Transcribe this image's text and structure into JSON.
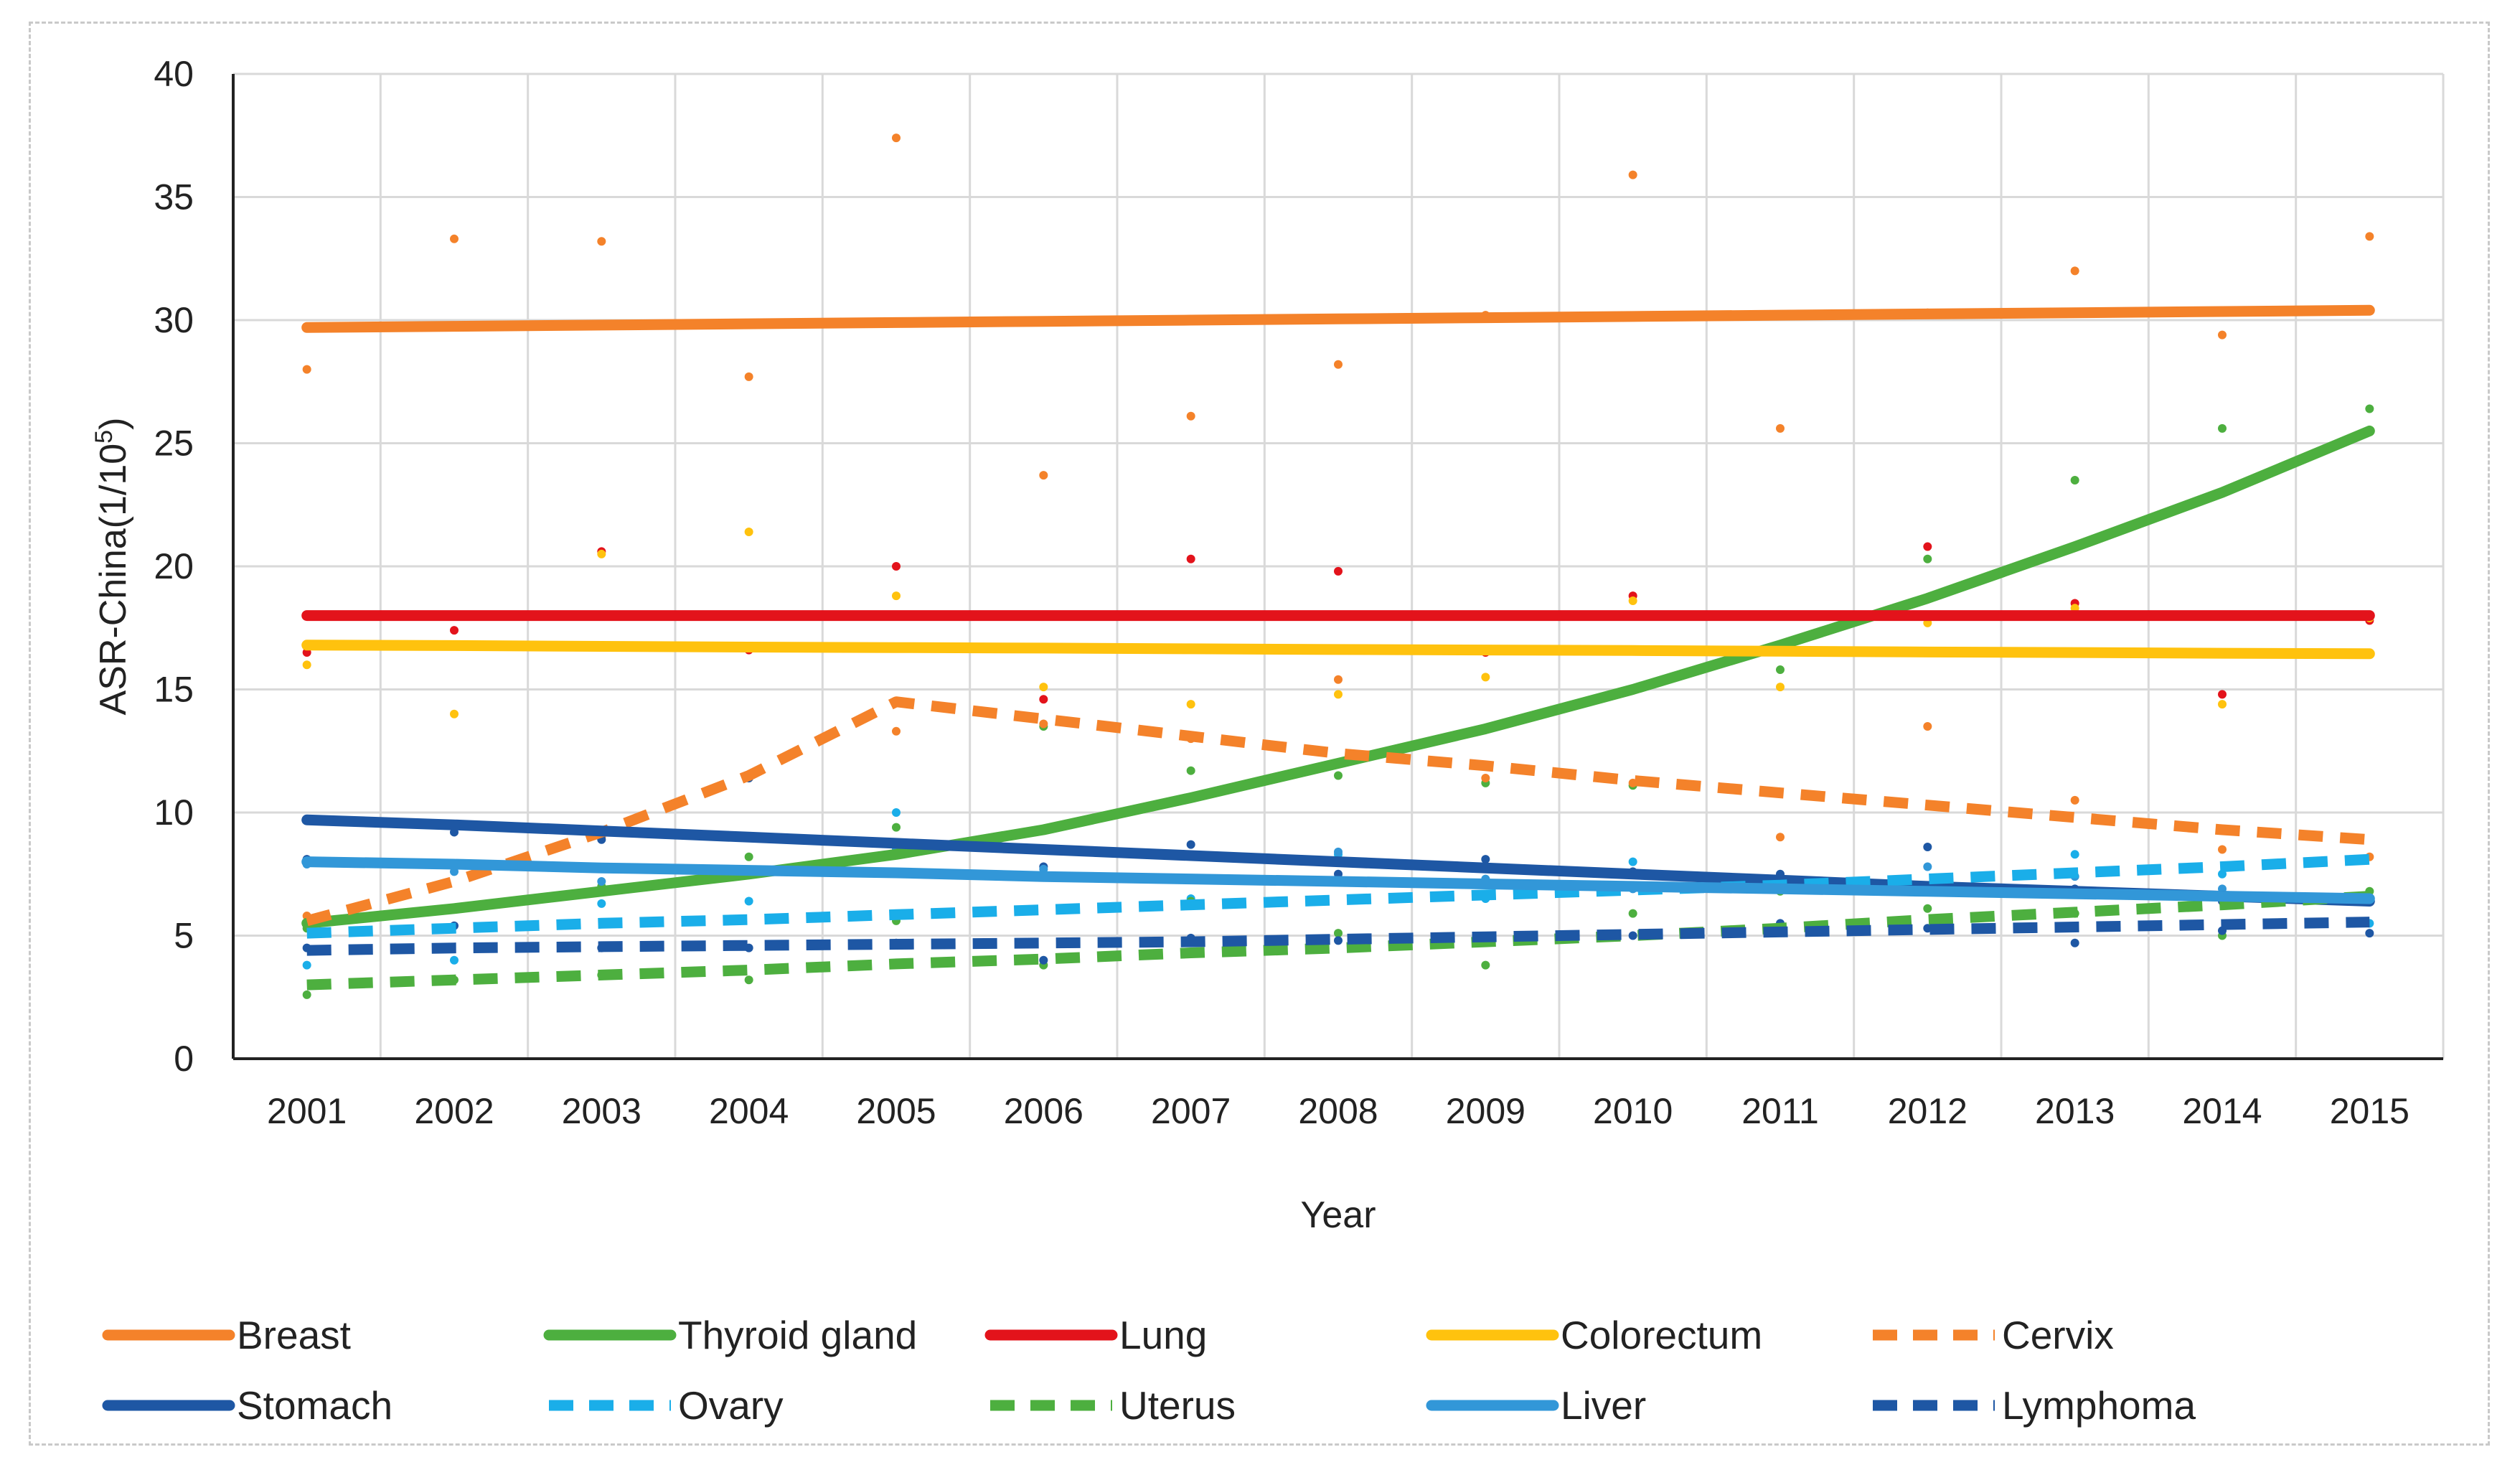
{
  "chart_data": {
    "type": "line",
    "xlabel": "Year",
    "ylabel": "ASR-China(1/10",
    "ylabel_sup": "5",
    "ylabel_close": ")",
    "ylim": [
      0,
      40
    ],
    "yticks": [
      0,
      5,
      10,
      15,
      20,
      25,
      30,
      35,
      40
    ],
    "categories": [
      "2001",
      "2002",
      "2003",
      "2004",
      "2005",
      "2006",
      "2007",
      "2008",
      "2009",
      "2010",
      "2011",
      "2012",
      "2013",
      "2014",
      "2015"
    ],
    "grid": true,
    "legend_position": "bottom",
    "series": [
      {
        "name": "Breast",
        "color": "#F4822A",
        "dash": false,
        "trend": [
          29.7,
          29.75,
          29.8,
          29.85,
          29.9,
          29.95,
          30.0,
          30.05,
          30.1,
          30.15,
          30.2,
          30.25,
          30.3,
          30.35,
          30.4
        ],
        "points": [
          28.0,
          33.3,
          33.2,
          27.7,
          37.4,
          23.7,
          26.1,
          28.2,
          30.2,
          35.9,
          25.6,
          30.3,
          32.0,
          29.4,
          33.4
        ]
      },
      {
        "name": "Thyroid gland",
        "color": "#4DAF3F",
        "dash": false,
        "trend": [
          5.5,
          6.1,
          6.8,
          7.5,
          8.3,
          9.3,
          10.6,
          12.0,
          13.4,
          15.0,
          16.8,
          18.7,
          20.8,
          23.0,
          25.5
        ],
        "points": [
          5.3,
          7.9,
          7.0,
          8.2,
          9.4,
          13.5,
          11.7,
          11.5,
          11.2,
          11.1,
          15.8,
          20.3,
          23.5,
          25.6,
          26.4
        ]
      },
      {
        "name": "Lung",
        "color": "#E3131B",
        "dash": false,
        "trend": [
          18.0,
          18.0,
          18.0,
          18.0,
          18.0,
          18.0,
          18.0,
          18.0,
          18.0,
          18.0,
          18.0,
          18.0,
          18.0,
          18.0,
          18.0
        ],
        "points": [
          16.5,
          17.4,
          20.6,
          16.6,
          20.0,
          14.6,
          20.3,
          19.8,
          16.5,
          18.8,
          18.0,
          20.8,
          18.5,
          14.8,
          17.8
        ]
      },
      {
        "name": "Colorectum",
        "color": "#FFC20E",
        "dash": false,
        "trend": [
          16.8,
          16.78,
          16.75,
          16.72,
          16.7,
          16.68,
          16.65,
          16.62,
          16.6,
          16.58,
          16.55,
          16.52,
          16.5,
          16.47,
          16.45
        ],
        "points": [
          16.0,
          14.0,
          20.5,
          21.4,
          18.8,
          15.1,
          14.4,
          14.8,
          15.5,
          18.6,
          15.1,
          17.7,
          18.3,
          14.4,
          17.9
        ]
      },
      {
        "name": "Cervix",
        "color": "#F4822A",
        "dash": true,
        "trend": [
          5.6,
          7.2,
          9.2,
          11.5,
          14.5,
          13.8,
          13.1,
          12.4,
          11.9,
          11.3,
          10.8,
          10.3,
          9.8,
          9.3,
          8.9
        ],
        "points": [
          5.8,
          7.8,
          9.0,
          11.4,
          13.3,
          13.6,
          13.0,
          15.4,
          11.4,
          11.2,
          9.0,
          13.5,
          10.5,
          8.5,
          8.2
        ]
      },
      {
        "name": "Stomach",
        "color": "#1E57A4",
        "dash": false,
        "trend": [
          9.7,
          9.5,
          9.25,
          9.0,
          8.75,
          8.5,
          8.25,
          8.0,
          7.75,
          7.5,
          7.25,
          7.0,
          6.8,
          6.6,
          6.4
        ],
        "points": [
          8.1,
          9.2,
          8.9,
          11.4,
          8.7,
          7.8,
          8.7,
          7.5,
          8.1,
          7.6,
          7.5,
          8.6,
          6.9,
          6.4,
          6.5
        ]
      },
      {
        "name": "Ovary",
        "color": "#1AAEE9",
        "dash": true,
        "trend": [
          5.1,
          5.3,
          5.5,
          5.65,
          5.85,
          6.05,
          6.25,
          6.45,
          6.65,
          6.85,
          7.05,
          7.3,
          7.55,
          7.8,
          8.1
        ],
        "points": [
          3.8,
          4.0,
          6.3,
          6.4,
          10.0,
          7.5,
          6.5,
          8.3,
          6.5,
          8.0,
          7.0,
          6.9,
          8.3,
          7.5,
          5.5
        ]
      },
      {
        "name": "Uterus",
        "color": "#4DAF3F",
        "dash": true,
        "trend": [
          3.0,
          3.2,
          3.4,
          3.6,
          3.85,
          4.05,
          4.3,
          4.5,
          4.75,
          5.0,
          5.3,
          5.65,
          5.95,
          6.25,
          6.6
        ],
        "points": [
          2.6,
          3.2,
          3.4,
          3.2,
          5.6,
          3.8,
          6.4,
          5.1,
          3.8,
          5.9,
          6.8,
          6.1,
          5.9,
          5.0,
          6.8
        ]
      },
      {
        "name": "Liver",
        "color": "#3297D8",
        "dash": false,
        "trend": [
          8.0,
          7.9,
          7.75,
          7.65,
          7.55,
          7.4,
          7.3,
          7.2,
          7.1,
          7.0,
          6.9,
          6.8,
          6.7,
          6.6,
          6.5
        ],
        "points": [
          7.9,
          7.6,
          7.2,
          7.6,
          8.5,
          7.7,
          6.3,
          8.4,
          7.3,
          6.9,
          7.2,
          7.8,
          7.4,
          6.9,
          6.4
        ]
      },
      {
        "name": "Lymphoma",
        "color": "#1E57A4",
        "dash": true,
        "trend": [
          4.4,
          4.5,
          4.55,
          4.6,
          4.65,
          4.7,
          4.75,
          4.85,
          4.95,
          5.05,
          5.15,
          5.25,
          5.35,
          5.45,
          5.55
        ],
        "points": [
          4.5,
          5.4,
          4.5,
          4.5,
          4.7,
          4.0,
          4.9,
          4.8,
          4.8,
          5.0,
          5.5,
          5.3,
          4.7,
          5.2,
          5.1
        ]
      }
    ]
  }
}
